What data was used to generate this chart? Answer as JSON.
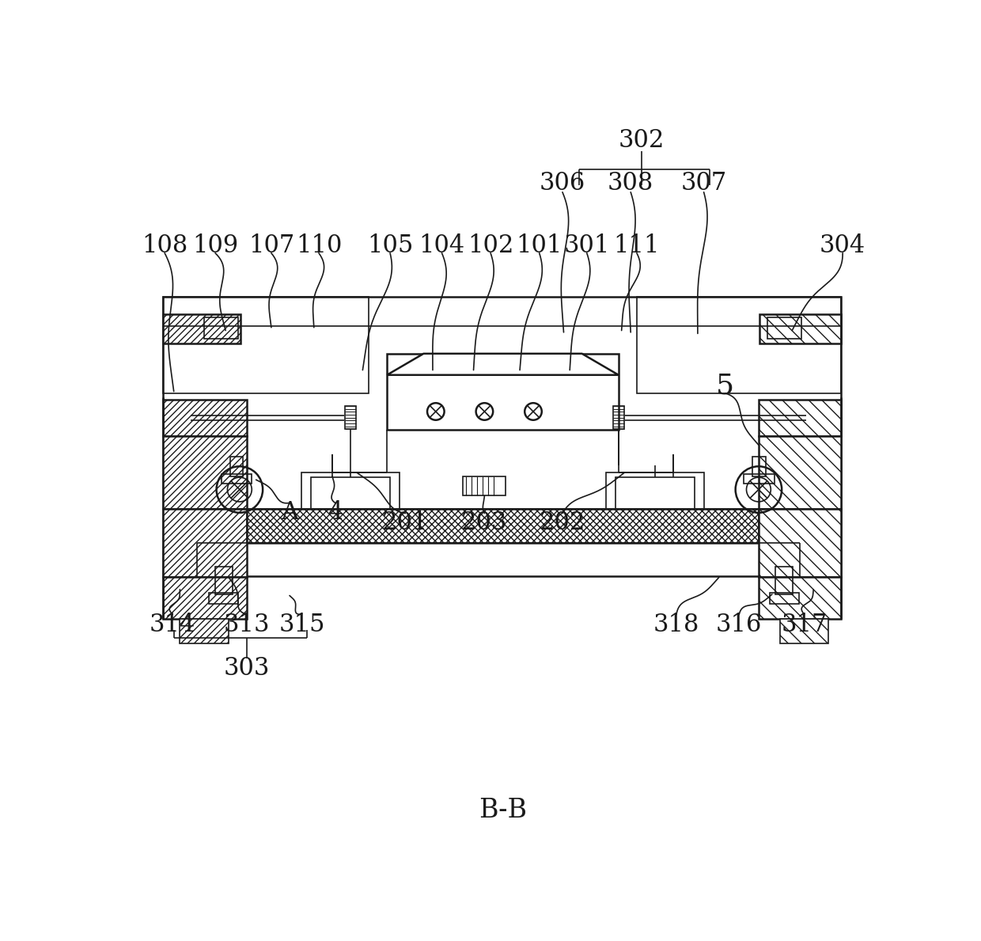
{
  "bg_color": "#ffffff",
  "line_color": "#1a1a1a",
  "title": "B-B",
  "title_fontsize": 24,
  "label_fontsize": 22
}
